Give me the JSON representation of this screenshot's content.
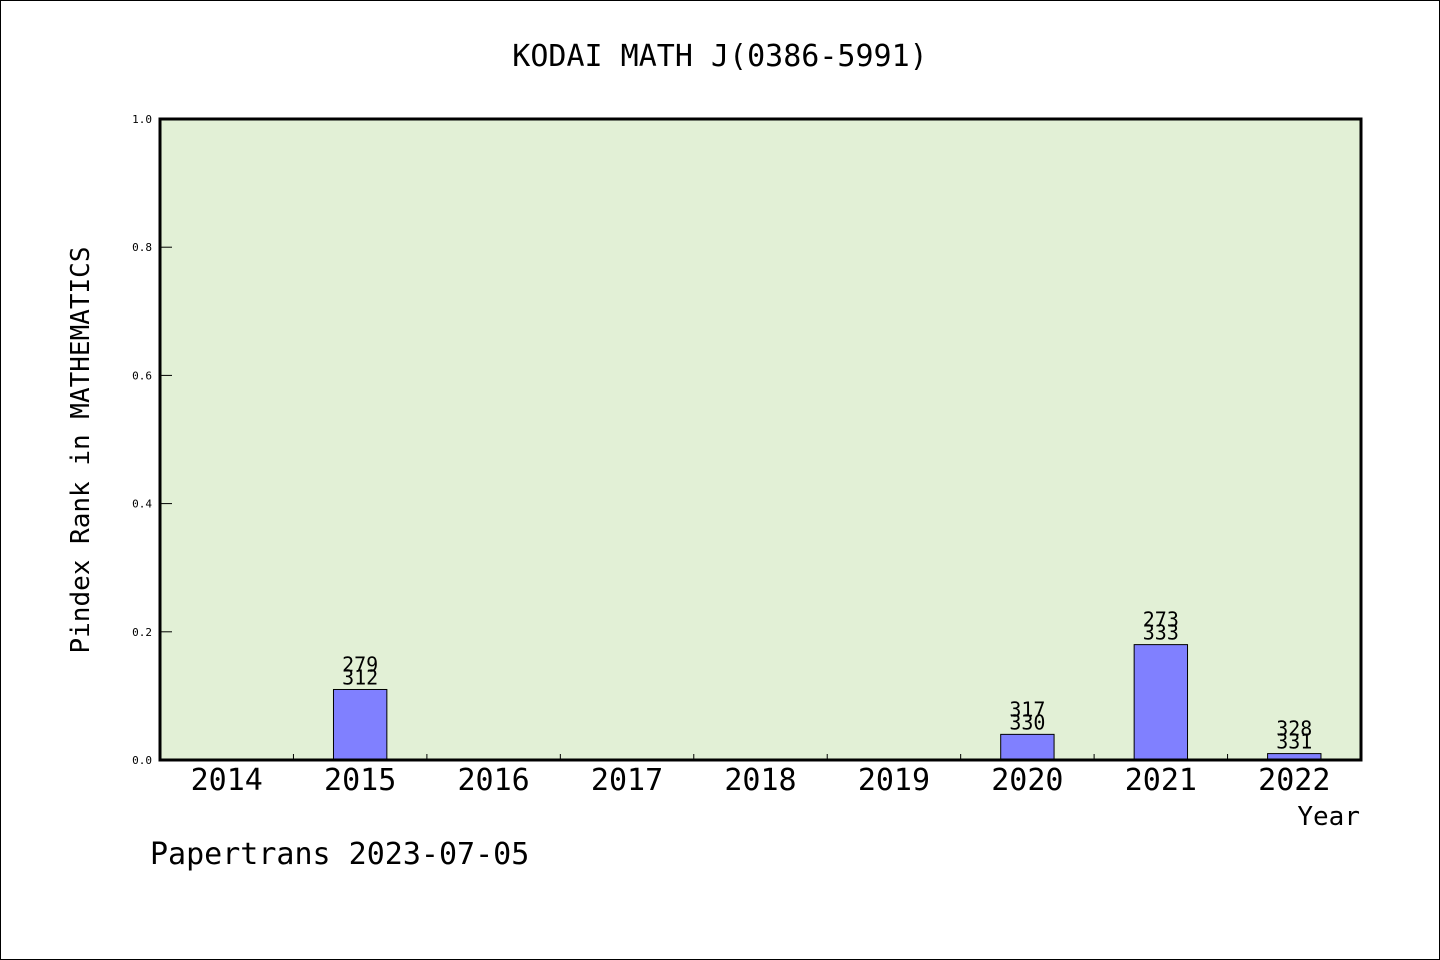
{
  "chart_data": {
    "type": "bar",
    "title": "KODAI MATH J(0386-5991)",
    "xlabel": "Year",
    "ylabel": "Pindex Rank in MATHEMATICS",
    "ylim": [
      0,
      1.0
    ],
    "yticks": [
      "0.0",
      "0.2",
      "0.4",
      "0.6",
      "0.8",
      "1.0"
    ],
    "categories": [
      "2014",
      "2015",
      "2016",
      "2017",
      "2018",
      "2019",
      "2020",
      "2021",
      "2022"
    ],
    "values": [
      0,
      0.11,
      0,
      0,
      0,
      0,
      0.04,
      0.18,
      0.01
    ],
    "labels_top": [
      "",
      "279",
      "",
      "",
      "",
      "",
      "317",
      "273",
      "328"
    ],
    "labels_bottom": [
      "",
      "312",
      "",
      "",
      "",
      "",
      "330",
      "333",
      "331"
    ],
    "grid": false,
    "colors": {
      "plot_background": "#e2f0d6",
      "bar_fill": "#8080ff",
      "axis": "#000000"
    }
  },
  "footer": {
    "credit": "Papertrans 2023-07-05"
  }
}
